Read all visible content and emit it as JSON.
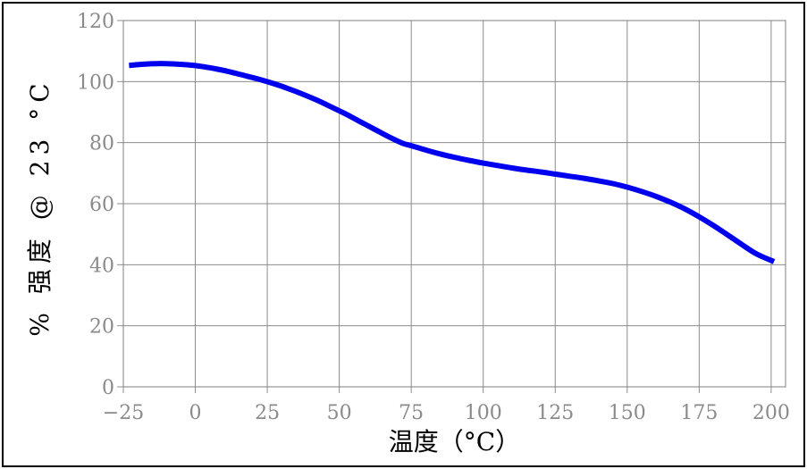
{
  "chart_data": {
    "type": "line",
    "title": "",
    "xlabel": "温度（°C）",
    "ylabel": "% 强度 @ 23 °C",
    "xlim": [
      -25,
      205
    ],
    "ylim": [
      0,
      120
    ],
    "x_ticks": [
      -25,
      0,
      25,
      50,
      75,
      100,
      125,
      150,
      175,
      200
    ],
    "y_ticks": [
      0,
      20,
      40,
      60,
      80,
      100,
      120
    ],
    "x_tick_labels": [
      "−25",
      "0",
      "25",
      "50",
      "75",
      "100",
      "125",
      "150",
      "175",
      "200"
    ],
    "y_tick_labels": [
      "0",
      "20",
      "40",
      "60",
      "80",
      "100",
      "120"
    ],
    "grid": true,
    "legend": "none",
    "series": [
      {
        "color": "#0000ee",
        "x": [
          -23,
          -18,
          -13,
          -8,
          -3,
          2,
          7,
          12,
          17,
          22,
          27,
          32,
          37,
          42,
          47,
          52,
          57,
          62,
          67,
          72,
          75,
          80,
          85,
          90,
          95,
          100,
          105,
          110,
          115,
          120,
          125,
          130,
          135,
          140,
          145,
          150,
          155,
          160,
          165,
          170,
          175,
          180,
          185,
          190,
          195,
          201
        ],
        "y": [
          105.3,
          105.7,
          105.9,
          105.8,
          105.5,
          105.0,
          104.2,
          103.2,
          102.0,
          100.8,
          99.4,
          97.8,
          96.0,
          94.0,
          91.8,
          89.5,
          87.0,
          84.5,
          82.0,
          79.8,
          79.0,
          77.6,
          76.3,
          75.2,
          74.2,
          73.3,
          72.5,
          71.7,
          71.0,
          70.4,
          69.7,
          69.0,
          68.3,
          67.5,
          66.6,
          65.4,
          64.0,
          62.4,
          60.5,
          58.3,
          55.7,
          52.8,
          49.7,
          46.5,
          43.5,
          41.0
        ]
      }
    ]
  }
}
